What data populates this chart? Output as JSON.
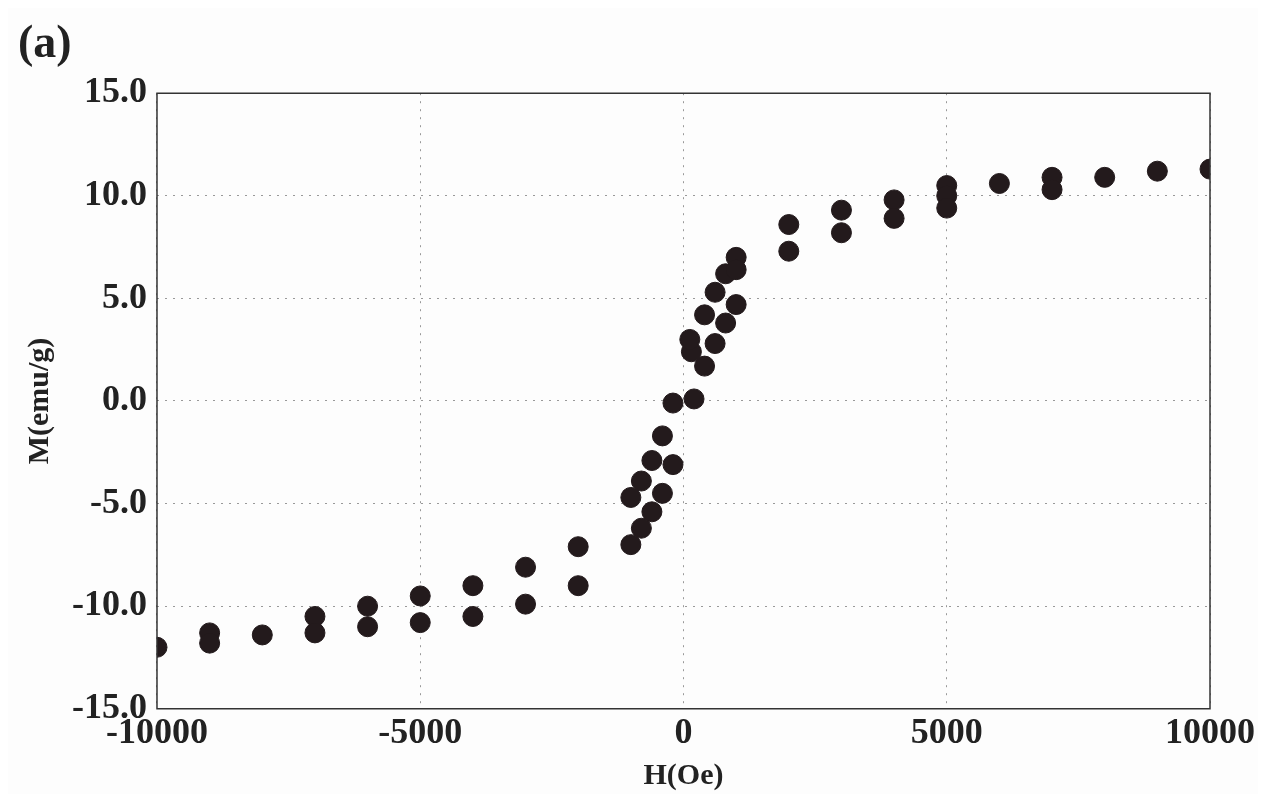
{
  "chart_data": {
    "type": "scatter",
    "title": "(a)",
    "xlabel": "H(Oe)",
    "ylabel": "M(emu/g)",
    "x": [
      -10000,
      -9000,
      -9000,
      -8000,
      -7000,
      -7000,
      -6000,
      -6000,
      -5000,
      -5000,
      -4000,
      -4000,
      -3000,
      -3000,
      -2000,
      -2000,
      -1000,
      -800,
      -600,
      -400,
      -1000,
      -800,
      -600,
      -200,
      -400,
      -200,
      200,
      400,
      150,
      120,
      600,
      400,
      800,
      600,
      1000,
      800,
      1000,
      1000,
      2000,
      2000,
      3000,
      3000,
      4000,
      4000,
      5000,
      5000,
      5000,
      6000,
      7000,
      7000,
      8000,
      9000,
      10000
    ],
    "series": [
      {
        "color": "#231a1c",
        "values": [
          -12.0,
          -11.3,
          -11.8,
          -11.4,
          -10.5,
          -11.3,
          -10.0,
          -11.0,
          -9.5,
          -10.8,
          -9.0,
          -10.5,
          -8.1,
          -9.9,
          -7.1,
          -9.0,
          -7.0,
          -6.2,
          -5.4,
          -4.5,
          -4.7,
          -3.9,
          -2.9,
          -3.1,
          -1.7,
          -0.1,
          0.1,
          1.7,
          2.4,
          3.0,
          2.8,
          4.2,
          3.8,
          5.3,
          4.7,
          6.2,
          7.0,
          6.4,
          8.6,
          7.3,
          9.3,
          8.2,
          9.8,
          8.9,
          10.5,
          10.0,
          9.4,
          10.6,
          10.9,
          10.3,
          10.9,
          11.2,
          11.3
        ]
      }
    ],
    "xlim": [
      -10000,
      10000
    ],
    "xticks": [
      -10000,
      -5000,
      0,
      5000,
      10000
    ],
    "ylim": [
      -15,
      15
    ],
    "yticks": [
      {
        "value": -15,
        "label": "-15.0"
      },
      {
        "value": -10,
        "label": "-10.0"
      },
      {
        "value": -5,
        "label": "-5.0"
      },
      {
        "value": 0,
        "label": "0.0"
      },
      {
        "value": 5,
        "label": "5.0"
      },
      {
        "value": 10,
        "label": "10.0"
      },
      {
        "value": 15,
        "label": "15.0"
      }
    ],
    "grid": true,
    "legend": false,
    "marker": "circle"
  }
}
